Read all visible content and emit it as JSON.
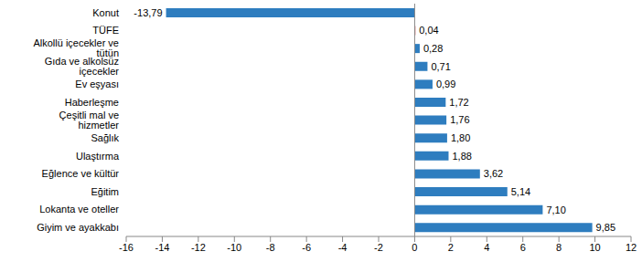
{
  "chart_data": {
    "type": "bar",
    "orientation": "horizontal",
    "categories": [
      "Konut",
      "TÜFE",
      "Alkollü içecekler ve tütün",
      "Gıda ve alkolsüz içecekler",
      "Ev eşyası",
      "Haberleşme",
      "Çeşitli mal ve hizmetler",
      "Sağlık",
      "Ulaştırma",
      "Eğlence ve kültür",
      "Eğitim",
      "Lokanta ve oteller",
      "Giyim ve ayakkabı"
    ],
    "values": [
      -13.79,
      0.04,
      0.28,
      0.71,
      0.99,
      1.72,
      1.76,
      1.8,
      1.88,
      3.62,
      5.14,
      7.1,
      9.85
    ],
    "value_labels": [
      "-13,79",
      "0,04",
      "0,28",
      "0,71",
      "0,99",
      "1,72",
      "1,76",
      "1,80",
      "1,88",
      "3,62",
      "5,14",
      "7,10",
      "9,85"
    ],
    "colors": [
      "#2e7dbf",
      "#c0262d",
      "#2e7dbf",
      "#2e7dbf",
      "#2e7dbf",
      "#2e7dbf",
      "#2e7dbf",
      "#2e7dbf",
      "#2e7dbf",
      "#2e7dbf",
      "#2e7dbf",
      "#2e7dbf",
      "#2e7dbf"
    ],
    "xlim": [
      -16,
      12
    ],
    "xticks": [
      -16,
      -14,
      -12,
      -10,
      -8,
      -6,
      -4,
      -2,
      0,
      2,
      4,
      6,
      8,
      10,
      12
    ],
    "data_labels": true,
    "grid": false
  }
}
